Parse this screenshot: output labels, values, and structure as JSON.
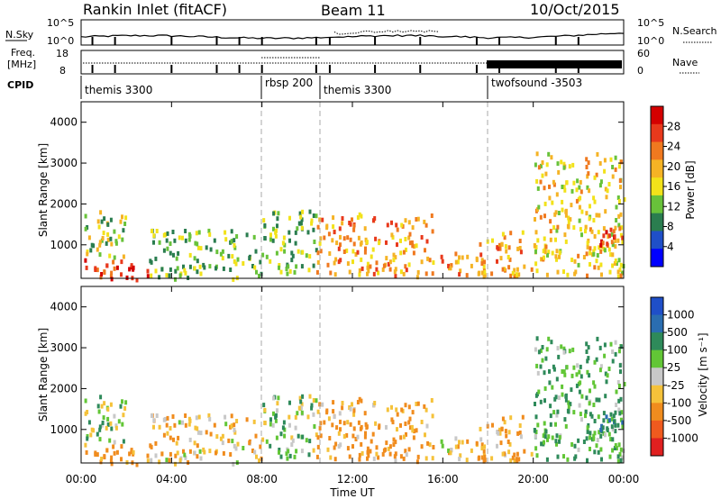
{
  "header": {
    "title": "Rankin Inlet (fitACF)",
    "beam": "Beam 11",
    "date": "10/Oct/2015"
  },
  "noise_panel": {
    "left_label": "N.Sky",
    "right_label": "N.Search",
    "tick_top_left": "10^5",
    "tick_bottom_left": "10^0",
    "tick_top_right": "10^5",
    "tick_bottom_right": "10^0"
  },
  "freq_panel": {
    "left_label_1": "Freq.",
    "left_label_2": "[MHz]",
    "right_label": "Nave",
    "tick_top_left": "18",
    "tick_bottom_left": "8",
    "tick_top_right": "60",
    "tick_bottom_right": "0"
  },
  "cpid": {
    "label": "CPID",
    "segments": [
      {
        "name": "themis 3300",
        "start": 0,
        "end": 8
      },
      {
        "name": "rbsp 200",
        "start": 8,
        "end": 10.4
      },
      {
        "name": "themis 3300",
        "start": 10.4,
        "end": 18
      },
      {
        "name": "twofsound -3503",
        "start": 18,
        "end": 24
      }
    ]
  },
  "x_axis": {
    "label": "Time UT",
    "ticks": [
      "00:00",
      "04:00",
      "08:00",
      "12:00",
      "16:00",
      "20:00",
      "00:00"
    ]
  },
  "y_axis": {
    "label": "Slant Range [km]",
    "ticks": [
      "1000",
      "2000",
      "3000",
      "4000"
    ]
  },
  "power_colorbar": {
    "label": "Power [dB]",
    "ticks": [
      "4",
      "8",
      "12",
      "16",
      "20",
      "24",
      "28"
    ],
    "colors": [
      "#0000ff",
      "#1f4fc8",
      "#2a7d4f",
      "#68c23a",
      "#f2e21a",
      "#f5b325",
      "#f0791f",
      "#e8391c",
      "#d40000"
    ]
  },
  "velocity_colorbar": {
    "label": "Velocity [m s⁻¹]",
    "ticks": [
      "1000",
      "500",
      "100",
      "25",
      "-25",
      "-100",
      "-500",
      "-1000"
    ],
    "colors": [
      "#1f4fc8",
      "#2a6db0",
      "#2e8a5a",
      "#62c636",
      "#c8c8c8",
      "#f5c23a",
      "#f08c1e",
      "#f05a1e",
      "#e02020"
    ]
  },
  "chart_data": {
    "type": "heatmap",
    "x_range_hours": [
      0,
      24
    ],
    "y_range_km": [
      180,
      4500
    ],
    "scatter_regions": [
      {
        "start": 0,
        "end": 3,
        "range_km": [
          180,
          720
        ],
        "power_dB": 28,
        "velocity": -250
      },
      {
        "start": 0,
        "end": 2,
        "range_km": [
          700,
          1850
        ],
        "power_dB": 14,
        "velocity": 30
      },
      {
        "start": 3,
        "end": 8,
        "range_km": [
          200,
          1400
        ],
        "power_dB": 12,
        "velocity": -60
      },
      {
        "start": 8,
        "end": 10.4,
        "range_km": [
          300,
          1900
        ],
        "power_dB": 12,
        "velocity": 50
      },
      {
        "start": 10.4,
        "end": 15.5,
        "range_km": [
          250,
          1800
        ],
        "power_dB": 22,
        "velocity": -150
      },
      {
        "start": 15.5,
        "end": 17.5,
        "range_km": [
          300,
          850
        ],
        "power_dB": 22,
        "velocity": -60
      },
      {
        "start": 17.5,
        "end": 20,
        "range_km": [
          250,
          1400
        ],
        "power_dB": 21,
        "velocity": -120
      },
      {
        "start": 20,
        "end": 24,
        "range_km": [
          250,
          3300
        ],
        "power_dB": 18,
        "velocity": 100
      },
      {
        "start": 22.8,
        "end": 24,
        "range_km": [
          800,
          1500
        ],
        "power_dB": 27,
        "velocity": 400
      }
    ]
  }
}
